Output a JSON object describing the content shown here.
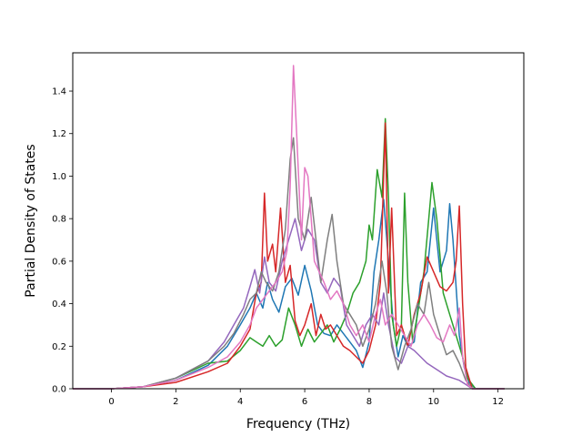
{
  "chart_data": {
    "type": "line",
    "title": "",
    "xlabel": "Frequency (THz)",
    "ylabel": "Partial Density of States",
    "xlim": [
      -1.2,
      12.8
    ],
    "ylim": [
      0.0,
      1.58
    ],
    "xticks": [
      0,
      2,
      4,
      6,
      8,
      10,
      12
    ],
    "yticks": [
      0.0,
      0.2,
      0.4,
      0.6,
      0.8,
      1.0,
      1.2,
      1.4
    ],
    "xtick_labels": [
      "0",
      "2",
      "4",
      "6",
      "8",
      "10",
      "12"
    ],
    "ytick_labels": [
      "0.0",
      "0.2",
      "0.4",
      "0.6",
      "0.8",
      "1.0",
      "1.2",
      "1.4"
    ],
    "grid": false,
    "legend": "none",
    "series": [
      {
        "color": "#1f77b4",
        "points": [
          [
            -1.2,
            0
          ],
          [
            0,
            0
          ],
          [
            1,
            0.01
          ],
          [
            2,
            0.04
          ],
          [
            3,
            0.11
          ],
          [
            3.6,
            0.2
          ],
          [
            4,
            0.3
          ],
          [
            4.3,
            0.38
          ],
          [
            4.5,
            0.45
          ],
          [
            4.7,
            0.38
          ],
          [
            4.85,
            0.5
          ],
          [
            5,
            0.42
          ],
          [
            5.2,
            0.36
          ],
          [
            5.4,
            0.48
          ],
          [
            5.6,
            0.52
          ],
          [
            5.8,
            0.44
          ],
          [
            6.0,
            0.58
          ],
          [
            6.2,
            0.46
          ],
          [
            6.4,
            0.3
          ],
          [
            6.6,
            0.26
          ],
          [
            6.8,
            0.25
          ],
          [
            7.0,
            0.3
          ],
          [
            7.2,
            0.26
          ],
          [
            7.4,
            0.22
          ],
          [
            7.6,
            0.18
          ],
          [
            7.8,
            0.1
          ],
          [
            8.0,
            0.22
          ],
          [
            8.15,
            0.55
          ],
          [
            8.3,
            0.7
          ],
          [
            8.45,
            0.89
          ],
          [
            8.6,
            0.6
          ],
          [
            8.75,
            0.3
          ],
          [
            8.9,
            0.15
          ],
          [
            9.05,
            0.25
          ],
          [
            9.2,
            0.2
          ],
          [
            9.4,
            0.22
          ],
          [
            9.6,
            0.5
          ],
          [
            9.8,
            0.55
          ],
          [
            10.0,
            0.85
          ],
          [
            10.2,
            0.55
          ],
          [
            10.4,
            0.65
          ],
          [
            10.5,
            0.87
          ],
          [
            10.6,
            0.7
          ],
          [
            10.8,
            0.25
          ],
          [
            10.95,
            0.1
          ],
          [
            11.1,
            0.03
          ],
          [
            11.3,
            0
          ],
          [
            12.2,
            0
          ]
        ]
      },
      {
        "color": "#2ca02c",
        "points": [
          [
            -1.2,
            0
          ],
          [
            0,
            0
          ],
          [
            1,
            0.01
          ],
          [
            2,
            0.05
          ],
          [
            3,
            0.12
          ],
          [
            3.6,
            0.13
          ],
          [
            4,
            0.18
          ],
          [
            4.3,
            0.24
          ],
          [
            4.5,
            0.22
          ],
          [
            4.7,
            0.2
          ],
          [
            4.9,
            0.25
          ],
          [
            5.1,
            0.2
          ],
          [
            5.3,
            0.23
          ],
          [
            5.5,
            0.38
          ],
          [
            5.7,
            0.3
          ],
          [
            5.9,
            0.2
          ],
          [
            6.1,
            0.28
          ],
          [
            6.3,
            0.22
          ],
          [
            6.5,
            0.26
          ],
          [
            6.7,
            0.3
          ],
          [
            6.9,
            0.22
          ],
          [
            7.1,
            0.28
          ],
          [
            7.3,
            0.35
          ],
          [
            7.5,
            0.45
          ],
          [
            7.7,
            0.5
          ],
          [
            7.9,
            0.6
          ],
          [
            8.0,
            0.77
          ],
          [
            8.1,
            0.7
          ],
          [
            8.25,
            1.03
          ],
          [
            8.4,
            0.9
          ],
          [
            8.5,
            1.27
          ],
          [
            8.6,
            0.9
          ],
          [
            8.7,
            0.35
          ],
          [
            8.85,
            0.2
          ],
          [
            9.0,
            0.3
          ],
          [
            9.1,
            0.92
          ],
          [
            9.2,
            0.5
          ],
          [
            9.35,
            0.22
          ],
          [
            9.5,
            0.35
          ],
          [
            9.7,
            0.55
          ],
          [
            9.85,
            0.8
          ],
          [
            9.95,
            0.97
          ],
          [
            10.1,
            0.8
          ],
          [
            10.3,
            0.45
          ],
          [
            10.5,
            0.35
          ],
          [
            10.7,
            0.25
          ],
          [
            10.9,
            0.15
          ],
          [
            11.05,
            0.05
          ],
          [
            11.3,
            0
          ],
          [
            12.2,
            0
          ]
        ]
      },
      {
        "color": "#d62728",
        "points": [
          [
            -1.2,
            0
          ],
          [
            0,
            0
          ],
          [
            1,
            0.01
          ],
          [
            2,
            0.03
          ],
          [
            3,
            0.08
          ],
          [
            3.6,
            0.12
          ],
          [
            4,
            0.2
          ],
          [
            4.3,
            0.28
          ],
          [
            4.5,
            0.45
          ],
          [
            4.65,
            0.5
          ],
          [
            4.75,
            0.92
          ],
          [
            4.85,
            0.6
          ],
          [
            5.0,
            0.68
          ],
          [
            5.1,
            0.55
          ],
          [
            5.25,
            0.85
          ],
          [
            5.4,
            0.5
          ],
          [
            5.55,
            0.58
          ],
          [
            5.7,
            0.32
          ],
          [
            5.85,
            0.25
          ],
          [
            6.0,
            0.3
          ],
          [
            6.2,
            0.4
          ],
          [
            6.35,
            0.25
          ],
          [
            6.5,
            0.35
          ],
          [
            6.65,
            0.28
          ],
          [
            6.8,
            0.3
          ],
          [
            7.0,
            0.25
          ],
          [
            7.2,
            0.2
          ],
          [
            7.4,
            0.18
          ],
          [
            7.6,
            0.15
          ],
          [
            7.8,
            0.12
          ],
          [
            8.0,
            0.18
          ],
          [
            8.2,
            0.3
          ],
          [
            8.35,
            0.5
          ],
          [
            8.5,
            1.25
          ],
          [
            8.6,
            0.45
          ],
          [
            8.7,
            0.85
          ],
          [
            8.85,
            0.25
          ],
          [
            9.0,
            0.3
          ],
          [
            9.2,
            0.2
          ],
          [
            9.4,
            0.35
          ],
          [
            9.6,
            0.45
          ],
          [
            9.8,
            0.62
          ],
          [
            10.0,
            0.55
          ],
          [
            10.2,
            0.48
          ],
          [
            10.4,
            0.46
          ],
          [
            10.6,
            0.5
          ],
          [
            10.7,
            0.6
          ],
          [
            10.8,
            0.86
          ],
          [
            10.9,
            0.4
          ],
          [
            11.0,
            0.1
          ],
          [
            11.2,
            0
          ],
          [
            12.2,
            0
          ]
        ]
      },
      {
        "color": "#9467bd",
        "points": [
          [
            -1.2,
            0
          ],
          [
            0,
            0
          ],
          [
            1,
            0.01
          ],
          [
            2,
            0.05
          ],
          [
            3,
            0.13
          ],
          [
            3.5,
            0.22
          ],
          [
            3.8,
            0.3
          ],
          [
            4.1,
            0.38
          ],
          [
            4.3,
            0.48
          ],
          [
            4.45,
            0.56
          ],
          [
            4.6,
            0.45
          ],
          [
            4.75,
            0.62
          ],
          [
            4.9,
            0.5
          ],
          [
            5.1,
            0.46
          ],
          [
            5.3,
            0.6
          ],
          [
            5.5,
            0.7
          ],
          [
            5.7,
            0.8
          ],
          [
            5.9,
            0.65
          ],
          [
            6.1,
            0.75
          ],
          [
            6.3,
            0.7
          ],
          [
            6.5,
            0.5
          ],
          [
            6.7,
            0.45
          ],
          [
            6.9,
            0.52
          ],
          [
            7.1,
            0.48
          ],
          [
            7.3,
            0.3
          ],
          [
            7.5,
            0.25
          ],
          [
            7.7,
            0.2
          ],
          [
            7.9,
            0.3
          ],
          [
            8.1,
            0.35
          ],
          [
            8.3,
            0.3
          ],
          [
            8.45,
            0.45
          ],
          [
            8.6,
            0.3
          ],
          [
            8.8,
            0.15
          ],
          [
            9.0,
            0.12
          ],
          [
            9.2,
            0.2
          ],
          [
            9.4,
            0.18
          ],
          [
            9.6,
            0.15
          ],
          [
            9.8,
            0.12
          ],
          [
            10.0,
            0.1
          ],
          [
            10.2,
            0.08
          ],
          [
            10.4,
            0.06
          ],
          [
            10.6,
            0.05
          ],
          [
            10.8,
            0.04
          ],
          [
            11.0,
            0.02
          ],
          [
            11.2,
            0
          ],
          [
            12.2,
            0
          ]
        ]
      },
      {
        "color": "#7f7f7f",
        "points": [
          [
            -1.2,
            0
          ],
          [
            0,
            0
          ],
          [
            1,
            0.01
          ],
          [
            2,
            0.05
          ],
          [
            3,
            0.13
          ],
          [
            3.5,
            0.2
          ],
          [
            3.8,
            0.26
          ],
          [
            4.1,
            0.35
          ],
          [
            4.3,
            0.42
          ],
          [
            4.5,
            0.45
          ],
          [
            4.65,
            0.55
          ],
          [
            4.8,
            0.5
          ],
          [
            5.0,
            0.46
          ],
          [
            5.2,
            0.55
          ],
          [
            5.4,
            0.75
          ],
          [
            5.55,
            1.08
          ],
          [
            5.65,
            1.18
          ],
          [
            5.8,
            0.8
          ],
          [
            6.0,
            0.7
          ],
          [
            6.2,
            0.9
          ],
          [
            6.35,
            0.7
          ],
          [
            6.5,
            0.5
          ],
          [
            6.7,
            0.7
          ],
          [
            6.85,
            0.82
          ],
          [
            7.0,
            0.6
          ],
          [
            7.2,
            0.4
          ],
          [
            7.4,
            0.35
          ],
          [
            7.6,
            0.3
          ],
          [
            7.8,
            0.2
          ],
          [
            8.0,
            0.28
          ],
          [
            8.2,
            0.4
          ],
          [
            8.4,
            0.6
          ],
          [
            8.55,
            0.45
          ],
          [
            8.7,
            0.2
          ],
          [
            8.9,
            0.09
          ],
          [
            9.1,
            0.2
          ],
          [
            9.3,
            0.28
          ],
          [
            9.5,
            0.4
          ],
          [
            9.7,
            0.35
          ],
          [
            9.85,
            0.5
          ],
          [
            10.0,
            0.35
          ],
          [
            10.2,
            0.25
          ],
          [
            10.4,
            0.16
          ],
          [
            10.6,
            0.18
          ],
          [
            10.8,
            0.12
          ],
          [
            11.0,
            0.04
          ],
          [
            11.2,
            0
          ],
          [
            12.2,
            0
          ]
        ]
      },
      {
        "color": "#e377c2",
        "points": [
          [
            -1.2,
            0
          ],
          [
            0,
            0
          ],
          [
            1,
            0.01
          ],
          [
            2,
            0.04
          ],
          [
            3,
            0.1
          ],
          [
            3.6,
            0.15
          ],
          [
            4,
            0.22
          ],
          [
            4.3,
            0.3
          ],
          [
            4.5,
            0.38
          ],
          [
            4.7,
            0.42
          ],
          [
            4.9,
            0.46
          ],
          [
            5.1,
            0.5
          ],
          [
            5.3,
            0.55
          ],
          [
            5.45,
            0.65
          ],
          [
            5.55,
            0.95
          ],
          [
            5.65,
            1.52
          ],
          [
            5.75,
            1.2
          ],
          [
            5.9,
            0.7
          ],
          [
            6.0,
            1.04
          ],
          [
            6.1,
            1.0
          ],
          [
            6.2,
            0.8
          ],
          [
            6.3,
            0.6
          ],
          [
            6.45,
            0.55
          ],
          [
            6.6,
            0.5
          ],
          [
            6.8,
            0.42
          ],
          [
            7.0,
            0.46
          ],
          [
            7.2,
            0.4
          ],
          [
            7.4,
            0.3
          ],
          [
            7.6,
            0.25
          ],
          [
            7.8,
            0.3
          ],
          [
            8.0,
            0.22
          ],
          [
            8.2,
            0.35
          ],
          [
            8.35,
            0.42
          ],
          [
            8.5,
            0.3
          ],
          [
            8.7,
            0.35
          ],
          [
            8.9,
            0.3
          ],
          [
            9.1,
            0.25
          ],
          [
            9.3,
            0.2
          ],
          [
            9.5,
            0.3
          ],
          [
            9.7,
            0.35
          ],
          [
            9.9,
            0.3
          ],
          [
            10.1,
            0.24
          ],
          [
            10.3,
            0.22
          ],
          [
            10.5,
            0.3
          ],
          [
            10.65,
            0.25
          ],
          [
            10.8,
            0.38
          ],
          [
            10.9,
            0.15
          ],
          [
            11.05,
            0.02
          ],
          [
            11.2,
            0
          ],
          [
            12.2,
            0
          ]
        ]
      }
    ]
  }
}
